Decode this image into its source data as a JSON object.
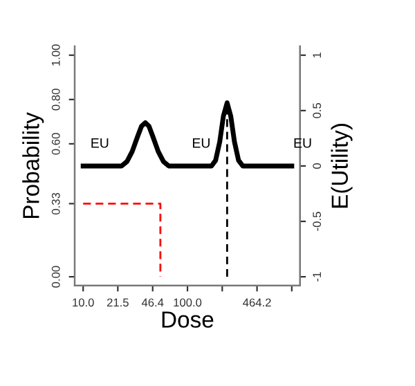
{
  "chart_data": {
    "type": "line",
    "xlabel": "Dose",
    "ylabel": "Probability",
    "y2label": "E(Utility)",
    "log": "x",
    "xlim": [
      8.3,
      1200
    ],
    "xticks": [
      {
        "value": 10,
        "label": "10.0"
      },
      {
        "value": 21.5,
        "label": "21.5"
      },
      {
        "value": 46.4,
        "label": "46.4"
      },
      {
        "value": 100,
        "label": "100.0"
      },
      {
        "value": 215.4,
        "label": null
      },
      {
        "value": 464.2,
        "label": "464.2"
      },
      {
        "value": 1000,
        "label": null
      }
    ],
    "ylim": [
      -0.04,
      1.04
    ],
    "yticks": [
      {
        "value": 0,
        "label": "0.00"
      },
      {
        "value": 0.33,
        "label": "0.33"
      },
      {
        "value": 0.6,
        "label": "0.60"
      },
      {
        "value": 0.8,
        "label": "0.80"
      },
      {
        "value": 1,
        "label": "1.00"
      }
    ],
    "y2lim": [
      -1.08,
      1.08
    ],
    "y2ticks": [
      -1,
      -0.5,
      0,
      0.5,
      1
    ],
    "grid": false,
    "series": [
      {
        "axis": "y2",
        "color": "#000000",
        "line_style": "solid",
        "x": [
          10,
          23.4,
          26.3,
          29.5,
          33.1,
          36.3,
          39.5,
          42.7,
          46.8,
          52.5,
          58.9,
          66.1,
          170,
          186,
          204,
          221,
          240,
          260,
          282,
          309,
          339,
          1000
        ],
        "values": [
          0,
          0,
          0.04,
          0.13,
          0.26,
          0.36,
          0.39,
          0.36,
          0.26,
          0.13,
          0.04,
          0,
          0,
          0.05,
          0.22,
          0.45,
          0.57,
          0.45,
          0.22,
          0.05,
          0,
          0
        ]
      },
      {
        "axis": "y",
        "color": "#ff0000",
        "line_style": "dashed",
        "x": [
          10,
          55,
          55
        ],
        "values": [
          0.33,
          0.33,
          0
        ]
      },
      {
        "axis": "y",
        "color": "#000000",
        "line_style": "dashed",
        "x": [
          240,
          240
        ],
        "values": [
          0,
          0.785
        ]
      }
    ],
    "annotations": [
      "EU",
      "EU",
      "EU"
    ]
  }
}
